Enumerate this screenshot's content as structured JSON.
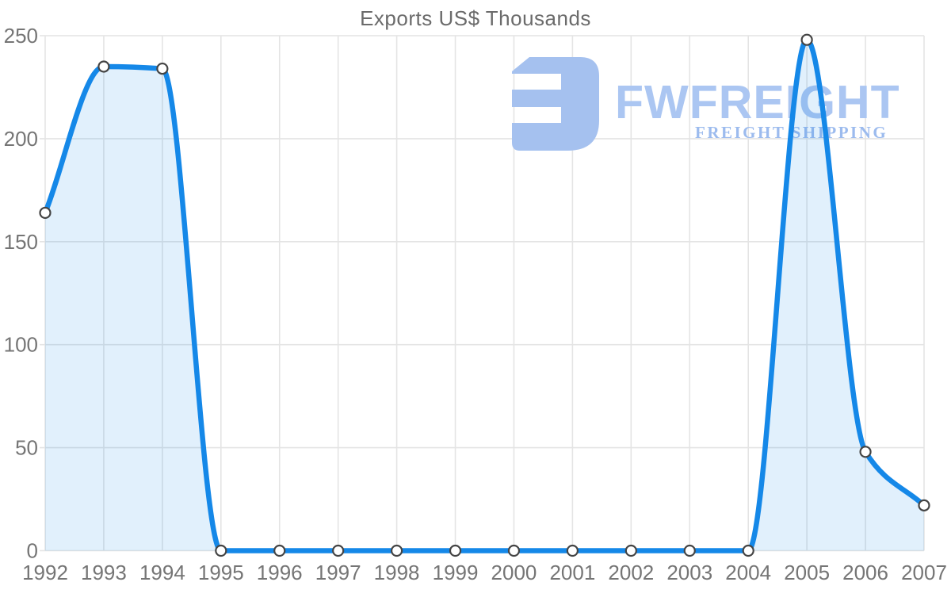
{
  "chart_data": {
    "type": "area",
    "title": "Exports US$ Thousands",
    "categories": [
      "1992",
      "1993",
      "1994",
      "1995",
      "1996",
      "1997",
      "1998",
      "1999",
      "2000",
      "2001",
      "2002",
      "2003",
      "2004",
      "2005",
      "2006",
      "2007"
    ],
    "series": [
      {
        "name": "Exports US$ Thousands",
        "values": [
          164,
          235,
          234,
          0,
          0,
          0,
          0,
          0,
          0,
          0,
          0,
          0,
          0,
          248,
          48,
          22
        ]
      }
    ],
    "xlabel": "",
    "ylabel": "",
    "ylim": [
      0,
      250
    ],
    "yticks": [
      0,
      50,
      100,
      150,
      200,
      250
    ],
    "grid": true,
    "legend": "none",
    "curve": "smooth",
    "line_color": "#1588e8",
    "fill_color": "rgba(21,136,232,0.13)",
    "grid_color": "#e4e4e4",
    "axis_label_color": "#757575",
    "title_color": "#6b6b6b",
    "marker": {
      "fill": "#ffffff",
      "stroke": "#444444"
    }
  },
  "watermark": {
    "wordmark": "FWFREIGHT",
    "subtitle": "FREIGHT SHIPPING",
    "wordmark_color": "#abc6f2",
    "subtitle_color": "#9cbbee",
    "icon_color": "#a5c1ef"
  }
}
